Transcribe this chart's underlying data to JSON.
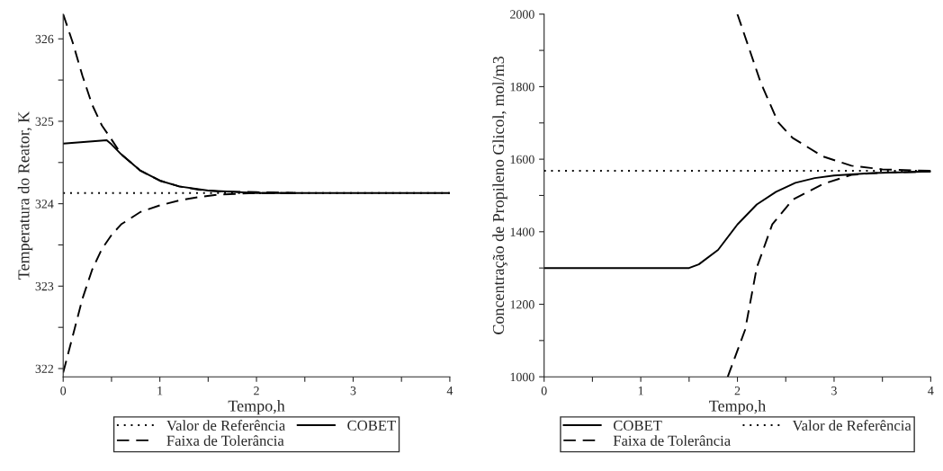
{
  "chart_data": [
    {
      "type": "line",
      "xlabel": "Tempo,h",
      "ylabel": "Temperatura do Reator, K",
      "legend": "bottom",
      "grid": false,
      "xlim": [
        0,
        4
      ],
      "ylim": [
        321.9,
        326.3
      ],
      "xticks": [
        0,
        {
          "value": 0.5,
          "label": null
        },
        1,
        {
          "value": 1.5,
          "label": null
        },
        2,
        {
          "value": 2.5,
          "label": null
        },
        3,
        {
          "value": 3.5,
          "label": null
        },
        4
      ],
      "yticks": [
        322,
        {
          "value": 322.5,
          "label": null
        },
        323,
        {
          "value": 323.5,
          "label": null
        },
        324,
        {
          "value": 324.5,
          "label": null
        },
        325,
        {
          "value": 325.5,
          "label": null
        },
        326
      ],
      "series": [
        {
          "name": "Valor de Referência",
          "color": "#000000",
          "line_style": "dotted",
          "x": [
            0,
            4
          ],
          "values": [
            324.13,
            324.13
          ]
        },
        {
          "name": "Faixa de Tolerância",
          "color": "#000000",
          "line_style": "dashed",
          "x": [
            0,
            0.1,
            0.2,
            0.3,
            0.4,
            0.5,
            0.6,
            0.8,
            1.0,
            1.2,
            1.4,
            1.6,
            2.0,
            2.4
          ],
          "values": [
            326.3,
            325.95,
            325.55,
            325.2,
            324.95,
            324.78,
            324.6,
            324.4,
            324.28,
            324.21,
            324.17,
            324.15,
            324.14,
            324.13
          ]
        },
        {
          "name": "COBET",
          "color": "#000000",
          "line_style": "solid",
          "x": [
            0,
            0.45,
            0.5,
            0.6,
            0.8,
            1.0,
            1.2,
            1.5,
            2.0,
            4.0
          ],
          "values": [
            324.73,
            324.77,
            324.72,
            324.6,
            324.4,
            324.28,
            324.21,
            324.16,
            324.13,
            324.13
          ]
        },
        {
          "color": "#000000",
          "line_style": "dashed",
          "x": [
            0,
            0.1,
            0.2,
            0.3,
            0.4,
            0.5,
            0.6,
            0.8,
            1.0,
            1.2,
            1.4,
            1.6,
            2.0,
            2.4
          ],
          "values": [
            321.95,
            322.4,
            322.85,
            323.2,
            323.45,
            323.62,
            323.75,
            323.9,
            323.98,
            324.04,
            324.08,
            324.11,
            324.13,
            324.13
          ]
        }
      ]
    },
    {
      "type": "line",
      "xlabel": "Tempo,h",
      "ylabel": "Concentração de Propileno Glicol, mol/m3",
      "legend": "bottom",
      "grid": false,
      "xlim": [
        0,
        4
      ],
      "ylim": [
        1000,
        2000
      ],
      "xticks": [
        0,
        {
          "value": 0.5,
          "label": null
        },
        1,
        {
          "value": 1.5,
          "label": null
        },
        2,
        {
          "value": 2.5,
          "label": null
        },
        3,
        {
          "value": 3.5,
          "label": null
        },
        4
      ],
      "yticks": [
        1000,
        {
          "value": 1100,
          "label": null
        },
        1200,
        {
          "value": 1300,
          "label": null
        },
        1400,
        {
          "value": 1500,
          "label": null
        },
        1600,
        {
          "value": 1700,
          "label": null
        },
        1800,
        {
          "value": 1900,
          "label": null
        },
        2000
      ],
      "series": [
        {
          "name": "COBET",
          "color": "#000000",
          "line_style": "solid",
          "x": [
            0,
            1.5,
            1.6,
            1.8,
            2.0,
            2.2,
            2.4,
            2.6,
            2.8,
            3.0,
            3.4,
            4.0
          ],
          "values": [
            1300,
            1300,
            1310,
            1350,
            1420,
            1475,
            1510,
            1535,
            1548,
            1555,
            1562,
            1566
          ]
        },
        {
          "name": "Faixa de Tolerância",
          "color": "#000000",
          "line_style": "dashed",
          "x": [
            2.0,
            2.24,
            2.42,
            2.57,
            2.88,
            3.18,
            3.5,
            4.0
          ],
          "values": [
            2000,
            1812,
            1702,
            1659,
            1608,
            1582,
            1572,
            1568
          ]
        },
        {
          "name": "Valor de Referência",
          "color": "#000000",
          "line_style": "dotted",
          "x": [
            0,
            4
          ],
          "values": [
            1568,
            1568
          ]
        },
        {
          "color": "#000000",
          "line_style": "dashed",
          "x": [
            1.9,
            2.08,
            2.2,
            2.36,
            2.57,
            2.88,
            3.18,
            3.5,
            4.0
          ],
          "values": [
            1000,
            1130,
            1301,
            1420,
            1488,
            1531,
            1557,
            1563,
            1566
          ]
        }
      ]
    }
  ]
}
